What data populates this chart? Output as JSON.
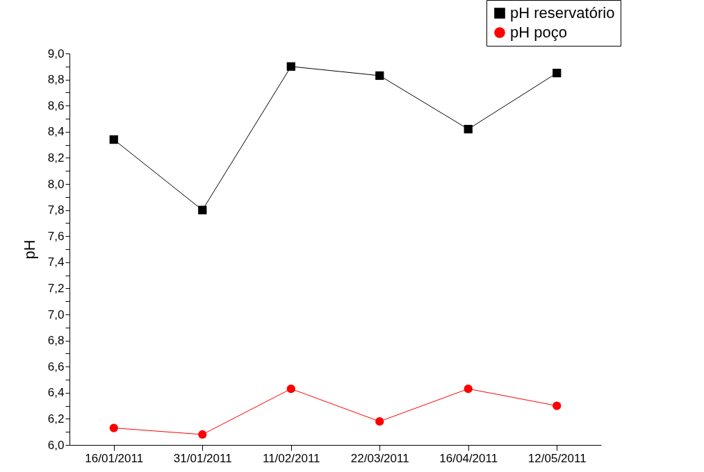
{
  "chart_data": {
    "type": "line",
    "ylabel": "pH",
    "categories": [
      "16/01/2011",
      "31/01/2011",
      "11/02/2011",
      "22/03/2011",
      "16/04/2011",
      "12/05/2011"
    ],
    "series": [
      {
        "name": "pH reservatório",
        "color": "#000000",
        "marker": "square",
        "values": [
          8.34,
          7.8,
          8.9,
          8.83,
          8.42,
          8.85
        ]
      },
      {
        "name": "pH poço",
        "color": "#ff0000",
        "marker": "circle",
        "values": [
          6.13,
          6.08,
          6.43,
          6.18,
          6.43,
          6.3
        ]
      }
    ],
    "ylim": [
      6.0,
      9.0
    ],
    "yticks": [
      {
        "value": 6.0,
        "label": "6,0"
      },
      {
        "value": 6.1,
        "label": null
      },
      {
        "value": 6.2,
        "label": "6,2"
      },
      {
        "value": 6.3,
        "label": null
      },
      {
        "value": 6.4,
        "label": "6,4"
      },
      {
        "value": 6.5,
        "label": null
      },
      {
        "value": 6.6,
        "label": "6,6"
      },
      {
        "value": 6.7,
        "label": null
      },
      {
        "value": 6.8,
        "label": "6,8"
      },
      {
        "value": 6.9,
        "label": null
      },
      {
        "value": 7.0,
        "label": "7,0"
      },
      {
        "value": 7.1,
        "label": null
      },
      {
        "value": 7.2,
        "label": "7,2"
      },
      {
        "value": 7.3,
        "label": null
      },
      {
        "value": 7.4,
        "label": "7,4"
      },
      {
        "value": 7.5,
        "label": null
      },
      {
        "value": 7.6,
        "label": "7,6"
      },
      {
        "value": 7.7,
        "label": null
      },
      {
        "value": 7.8,
        "label": "7,8"
      },
      {
        "value": 7.9,
        "label": null
      },
      {
        "value": 8.0,
        "label": "8,0"
      },
      {
        "value": 8.1,
        "label": null
      },
      {
        "value": 8.2,
        "label": "8,2"
      },
      {
        "value": 8.3,
        "label": null
      },
      {
        "value": 8.4,
        "label": "8,4"
      },
      {
        "value": 8.5,
        "label": null
      },
      {
        "value": 8.6,
        "label": "8,6"
      },
      {
        "value": 8.7,
        "label": null
      },
      {
        "value": 8.8,
        "label": "8,8"
      },
      {
        "value": 8.9,
        "label": null
      },
      {
        "value": 9.0,
        "label": "9,0"
      }
    ],
    "grid": false,
    "legend": "top right",
    "line_style": "solid"
  }
}
